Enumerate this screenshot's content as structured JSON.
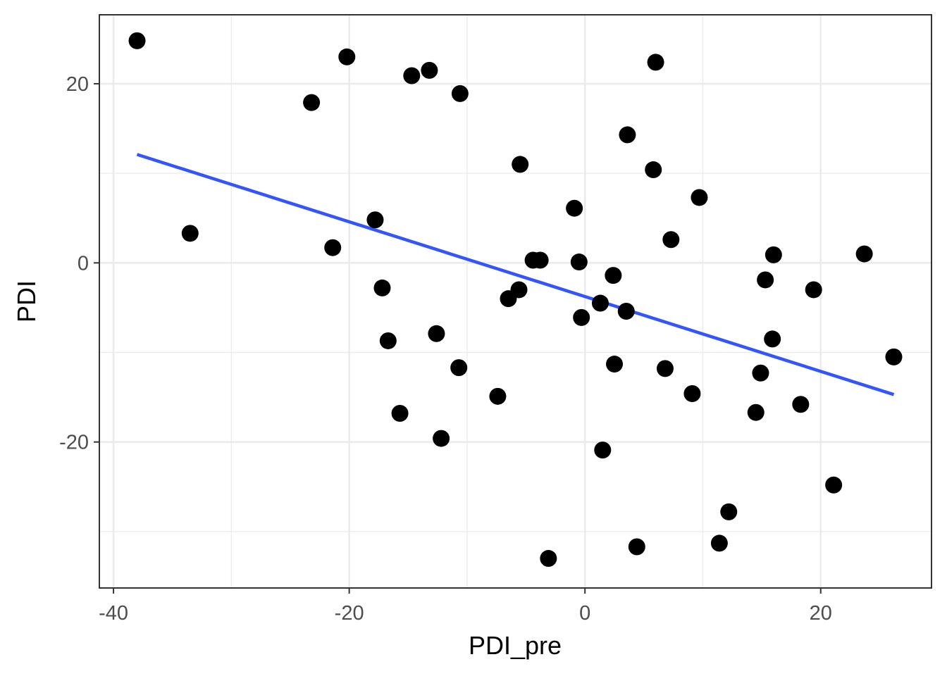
{
  "chart_data": {
    "type": "scatter",
    "xlabel": "PDI_pre",
    "ylabel": "PDI",
    "xlim": [
      -41.2,
      29.4
    ],
    "ylim": [
      -36.3,
      27.7
    ],
    "x_ticks": [
      -40,
      -20,
      0,
      20
    ],
    "y_ticks": [
      -20,
      0,
      20
    ],
    "x_tick_labels": [
      "-40",
      "-20",
      "0",
      "20"
    ],
    "y_tick_labels": [
      "-20",
      "0",
      "20"
    ],
    "x_minor": [
      -30,
      -10,
      10
    ],
    "y_minor": [
      -30,
      -10,
      10
    ],
    "grid": true,
    "legend": "none",
    "point_color": "#000000",
    "line_color": "#3355ff",
    "points": [
      {
        "x": -38.0,
        "y": 24.8
      },
      {
        "x": -33.5,
        "y": 3.3
      },
      {
        "x": -23.2,
        "y": 17.9
      },
      {
        "x": -21.4,
        "y": 1.7
      },
      {
        "x": -20.2,
        "y": 23.0
      },
      {
        "x": -17.8,
        "y": 4.8
      },
      {
        "x": -17.2,
        "y": -2.8
      },
      {
        "x": -16.7,
        "y": -8.7
      },
      {
        "x": -15.7,
        "y": -16.8
      },
      {
        "x": -14.7,
        "y": 20.9
      },
      {
        "x": -13.2,
        "y": 21.5
      },
      {
        "x": -12.6,
        "y": -7.9
      },
      {
        "x": -12.2,
        "y": -19.6
      },
      {
        "x": -10.6,
        "y": 18.9
      },
      {
        "x": -10.7,
        "y": -11.7
      },
      {
        "x": -7.4,
        "y": -14.9
      },
      {
        "x": -6.5,
        "y": -4.0
      },
      {
        "x": -5.6,
        "y": -3.0
      },
      {
        "x": -5.5,
        "y": 11.0
      },
      {
        "x": -4.4,
        "y": 0.3
      },
      {
        "x": -3.8,
        "y": 0.3
      },
      {
        "x": -3.1,
        "y": -33.0
      },
      {
        "x": -0.9,
        "y": 6.1
      },
      {
        "x": -0.5,
        "y": 0.1
      },
      {
        "x": -0.3,
        "y": -6.1
      },
      {
        "x": 1.3,
        "y": -4.5
      },
      {
        "x": 1.5,
        "y": -20.9
      },
      {
        "x": 2.4,
        "y": -1.4
      },
      {
        "x": 2.5,
        "y": -11.3
      },
      {
        "x": 3.5,
        "y": -5.4
      },
      {
        "x": 3.6,
        "y": 14.3
      },
      {
        "x": 4.4,
        "y": -31.7
      },
      {
        "x": 5.8,
        "y": 10.4
      },
      {
        "x": 6.0,
        "y": 22.4
      },
      {
        "x": 6.8,
        "y": -11.8
      },
      {
        "x": 7.3,
        "y": 2.6
      },
      {
        "x": 9.1,
        "y": -14.6
      },
      {
        "x": 9.7,
        "y": 7.3
      },
      {
        "x": 11.4,
        "y": -31.3
      },
      {
        "x": 12.2,
        "y": -27.8
      },
      {
        "x": 14.5,
        "y": -16.7
      },
      {
        "x": 14.9,
        "y": -12.3
      },
      {
        "x": 15.3,
        "y": -1.9
      },
      {
        "x": 15.9,
        "y": -8.5
      },
      {
        "x": 16.0,
        "y": 0.9
      },
      {
        "x": 18.3,
        "y": -15.8
      },
      {
        "x": 19.4,
        "y": -3.0
      },
      {
        "x": 21.1,
        "y": -24.8
      },
      {
        "x": 23.7,
        "y": 1.0
      },
      {
        "x": 26.2,
        "y": -10.5
      }
    ],
    "fit_line": {
      "x": [
        -38.0,
        26.2
      ],
      "y": [
        12.1,
        -14.7
      ]
    }
  }
}
